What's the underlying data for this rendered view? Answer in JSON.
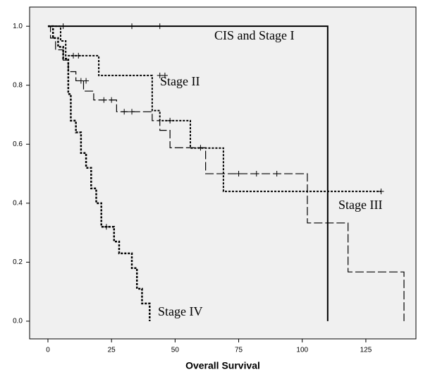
{
  "chart_data": {
    "type": "kaplan-meier",
    "x_label": "Overall Survival",
    "xlim": [
      -7.2,
      144.7
    ],
    "ylim": [
      -0.06,
      1.065
    ],
    "xticks": [
      0,
      25,
      50,
      75,
      100,
      125
    ],
    "yticks": [
      {
        "value": 0.0,
        "label": "0.0"
      },
      0.2,
      0.4,
      0.6,
      0.8,
      {
        "value": 1.0,
        "label": "1.0"
      }
    ],
    "series": [
      {
        "name": "CIS and Stage I",
        "style": "solid",
        "color": "#000000",
        "x": [
          0,
          110
        ],
        "values": [
          1.0,
          0.0
        ],
        "censored": {
          "x": [
            6,
            33,
            44
          ],
          "values": [
            1.0,
            1.0,
            1.0
          ]
        }
      },
      {
        "name": "Stage II",
        "style": "dotted",
        "color": "#000000",
        "x": [
          0,
          5,
          7,
          20,
          41,
          44,
          56,
          69
        ],
        "values": [
          1.0,
          0.95,
          0.9,
          0.833,
          0.714,
          0.68,
          0.587,
          0.44
        ],
        "censored": {
          "x": [
            10,
            12,
            44,
            46,
            48,
            131
          ],
          "values": [
            0.9,
            0.9,
            0.833,
            0.833,
            0.68,
            0.44
          ]
        }
      },
      {
        "name": "Stage III",
        "style": "dashed",
        "color": "#000000",
        "x": [
          0,
          1,
          3,
          6,
          8,
          11,
          14,
          18,
          27,
          41,
          44,
          48,
          62,
          102,
          118,
          140
        ],
        "values": [
          1.0,
          0.96,
          0.92,
          0.885,
          0.846,
          0.815,
          0.78,
          0.75,
          0.71,
          0.68,
          0.647,
          0.588,
          0.5,
          0.333,
          0.167,
          0.0
        ],
        "censored": {
          "x": [
            13,
            15,
            22,
            25,
            30,
            33,
            60,
            75,
            82,
            90
          ],
          "values": [
            0.815,
            0.815,
            0.75,
            0.75,
            0.71,
            0.71,
            0.588,
            0.5,
            0.5,
            0.5
          ]
        }
      },
      {
        "name": "Stage IV",
        "style": "dotted-bold",
        "color": "#000000",
        "x": [
          0,
          2,
          4,
          6,
          8,
          9,
          11,
          13,
          15,
          17,
          19,
          21,
          26,
          28,
          33,
          35,
          37,
          40
        ],
        "values": [
          1.0,
          0.96,
          0.93,
          0.89,
          0.77,
          0.68,
          0.64,
          0.57,
          0.52,
          0.45,
          0.4,
          0.32,
          0.27,
          0.23,
          0.18,
          0.11,
          0.06,
          0.0
        ],
        "censored": {
          "x": [
            23
          ],
          "values": [
            0.32
          ]
        }
      }
    ]
  }
}
